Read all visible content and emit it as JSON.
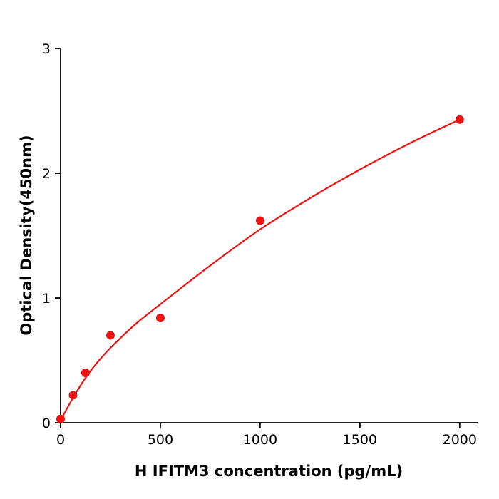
{
  "figure": {
    "background": "#ffffff",
    "accent_color": "#ee1111",
    "axis_color": "#000000"
  },
  "chart_data": {
    "type": "scatter",
    "title": "",
    "xlabel": "H  IFITM3 concentration (pg/mL)",
    "ylabel": "Optical Density(450nm)",
    "xlim": [
      0,
      2090
    ],
    "ylim": [
      0,
      3
    ],
    "x_ticks": [
      0,
      500,
      1000,
      1500,
      2000
    ],
    "y_ticks": [
      0,
      1,
      2,
      3
    ],
    "grid": false,
    "legend": "none",
    "series": [
      {
        "name": "standard-points",
        "type": "scatter",
        "color": "#ee1111",
        "marker": "circle",
        "marker_radius": 6,
        "x": [
          0,
          62.5,
          125,
          250,
          500,
          1000,
          2000
        ],
        "y": [
          0.03,
          0.22,
          0.4,
          0.7,
          0.84,
          1.62,
          2.43
        ]
      },
      {
        "name": "fit-curve",
        "type": "line",
        "color": "#ee1111",
        "line_width": 2.2,
        "x": [
          0,
          62.5,
          125,
          187.5,
          250,
          375,
          500,
          750,
          1000,
          1250,
          1500,
          1750,
          2000
        ],
        "y": [
          0.02,
          0.2,
          0.36,
          0.49,
          0.6,
          0.79,
          0.95,
          1.26,
          1.55,
          1.8,
          2.03,
          2.24,
          2.43
        ]
      }
    ]
  }
}
